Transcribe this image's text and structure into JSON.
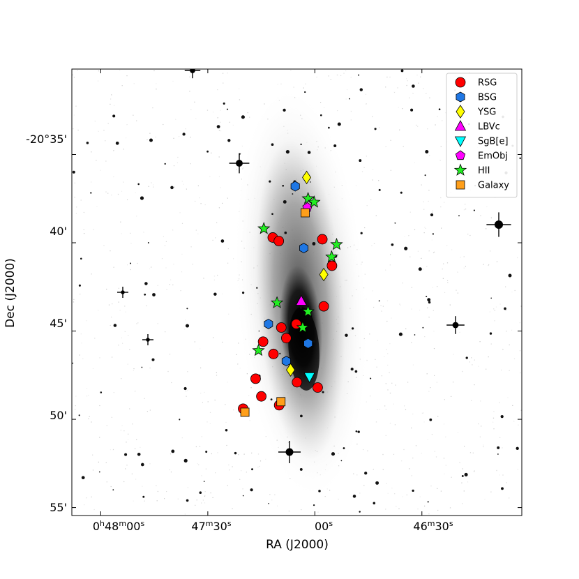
{
  "chart_data": {
    "type": "scatter",
    "xlabel": "RA (J2000)",
    "ylabel": "Dec (J2000)",
    "x_ticks": [
      {
        "label": "0h48m00s",
        "value": 0.0
      },
      {
        "label": "47m30s",
        "value": 30.0
      },
      {
        "label": "00s",
        "value": 60.0
      },
      {
        "label": "46m30s",
        "value": 90.0
      }
    ],
    "y_ticks": [
      {
        "label": "-20°35'",
        "value": 35
      },
      {
        "label": "40'",
        "value": 40
      },
      {
        "label": "45'",
        "value": 45
      },
      {
        "label": "50'",
        "value": 50
      },
      {
        "label": "55'",
        "value": 55
      }
    ],
    "xlim": [
      -8.1,
      118.0
    ],
    "ylim": [
      30.16,
      55.45
    ],
    "legend_position": "top-right",
    "grid": false,
    "background_image": "inverted grayscale sky image of an edge-on spiral galaxy (NGC 247) with field stars",
    "series": [
      {
        "name": "RSG",
        "marker": "circle",
        "color": "#ff0000",
        "points": [
          [
            48.2,
            39.7
          ],
          [
            49.9,
            39.9
          ],
          [
            62.1,
            39.8
          ],
          [
            64.8,
            41.3
          ],
          [
            50.6,
            44.8
          ],
          [
            54.8,
            44.6
          ],
          [
            62.5,
            43.6
          ],
          [
            52.0,
            45.4
          ],
          [
            45.5,
            45.6
          ],
          [
            48.4,
            46.3
          ],
          [
            43.4,
            47.7
          ],
          [
            55.0,
            47.9
          ],
          [
            60.8,
            48.2
          ],
          [
            45.0,
            48.7
          ],
          [
            50.0,
            49.2
          ],
          [
            39.9,
            49.4
          ]
        ]
      },
      {
        "name": "BSG",
        "marker": "hexagon",
        "color": "#1f77e4",
        "points": [
          [
            54.5,
            36.8
          ],
          [
            56.9,
            40.3
          ],
          [
            47.0,
            44.6
          ],
          [
            58.1,
            45.7
          ],
          [
            52.0,
            46.7
          ]
        ]
      },
      {
        "name": "YSG",
        "marker": "diamond",
        "color": "#ffff00",
        "points": [
          [
            57.7,
            36.3
          ],
          [
            62.5,
            41.8
          ],
          [
            53.2,
            47.2
          ]
        ]
      },
      {
        "name": "LBVc",
        "marker": "triangle-up",
        "color": "#ff00ff",
        "points": [
          [
            56.2,
            43.3
          ]
        ]
      },
      {
        "name": "SgB[e]",
        "marker": "triangle-down",
        "color": "#00ffff",
        "points": [
          [
            58.5,
            47.6
          ]
        ]
      },
      {
        "name": "EmObj",
        "marker": "pentagon",
        "color": "#ff00ff",
        "points": [
          [
            57.9,
            38.0
          ]
        ]
      },
      {
        "name": "HII",
        "marker": "star",
        "color": "#22ee22",
        "points": [
          [
            45.7,
            39.2
          ],
          [
            58.1,
            37.5
          ],
          [
            59.8,
            37.7
          ],
          [
            66.1,
            40.1
          ],
          [
            64.7,
            40.8
          ],
          [
            49.4,
            43.4
          ],
          [
            58.1,
            43.9
          ],
          [
            56.6,
            44.8
          ],
          [
            44.2,
            46.1
          ]
        ]
      },
      {
        "name": "Galaxy",
        "marker": "square",
        "color": "#ff9f1a",
        "points": [
          [
            57.3,
            38.3
          ],
          [
            50.5,
            49.0
          ],
          [
            40.4,
            49.6
          ]
        ]
      }
    ]
  }
}
